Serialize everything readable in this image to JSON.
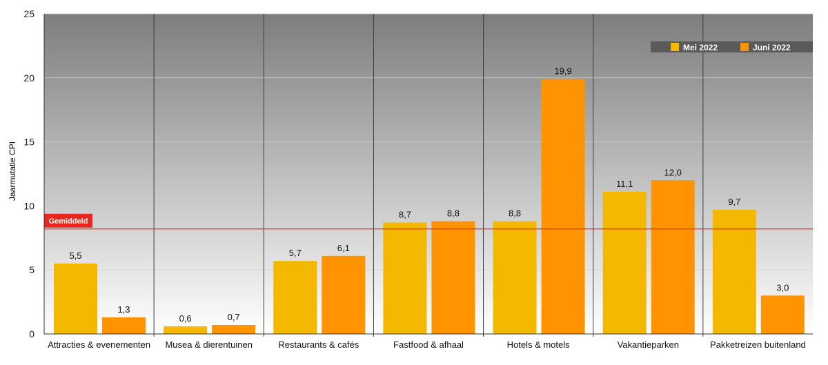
{
  "chart_data": {
    "type": "bar",
    "title": "",
    "xlabel": "",
    "ylabel": "Jaarmutatie CPI",
    "ylim": [
      0,
      25
    ],
    "yticks": [
      "0",
      "5",
      "10",
      "15",
      "20",
      "25"
    ],
    "ytick_values": [
      0,
      5,
      10,
      15,
      20,
      25
    ],
    "grid": true,
    "legend_position": "top-right",
    "categories": [
      "Attracties & evenementen",
      "Musea & dierentuinen",
      "Restaurants & cafés",
      "Fastfood & afhaal",
      "Hotels & motels",
      "Vakantieparken",
      "Pakketreizen buitenland"
    ],
    "series": [
      {
        "name": "Mei 2022",
        "color": "#F5B800",
        "values": [
          5.5,
          0.6,
          5.7,
          8.7,
          8.8,
          11.1,
          9.7
        ],
        "labels": [
          "5,5",
          "0,6",
          "5,7",
          "8,7",
          "8,8",
          "11,1",
          "9,7"
        ]
      },
      {
        "name": "Juni 2022",
        "color": "#FF9400",
        "values": [
          1.3,
          0.7,
          6.1,
          8.8,
          19.9,
          12.0,
          3.0
        ],
        "labels": [
          "1,3",
          "0,7",
          "6,1",
          "8,8",
          "19,9",
          "12,0",
          "3,0"
        ]
      }
    ],
    "reference_line": {
      "label": "Gemiddeld",
      "value": 8.2,
      "color": "#E8281E"
    }
  }
}
